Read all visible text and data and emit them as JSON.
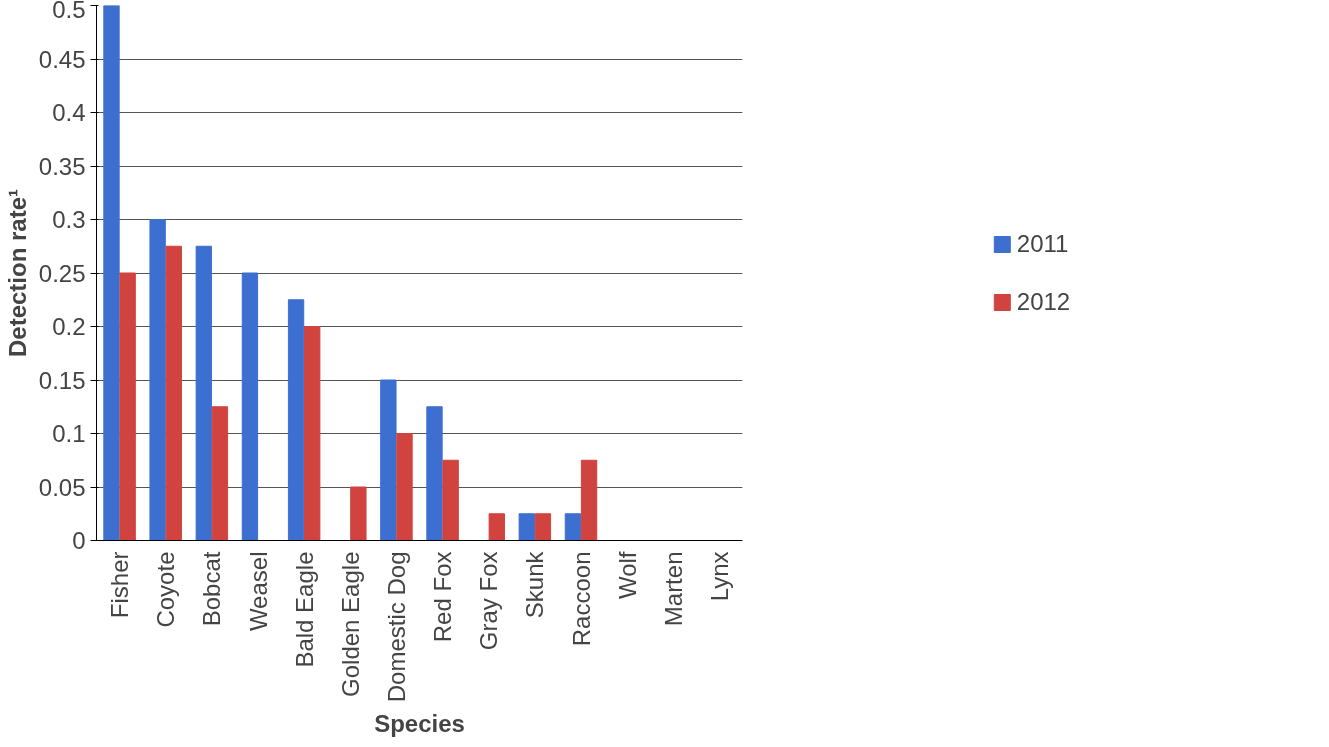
{
  "chart_data": {
    "type": "bar",
    "xlabel": "Species",
    "ylabel": "Detection rate¹",
    "categories": [
      "Fisher",
      "Coyote",
      "Bobcat",
      "Weasel",
      "Bald Eagle",
      "Golden Eagle",
      "Domestic Dog",
      "Red Fox",
      "Gray Fox",
      "Skunk",
      "Raccoon",
      "Wolf",
      "Marten",
      "Lynx"
    ],
    "series": [
      {
        "name": "2011",
        "color": "#3d6fd0",
        "values": [
          0.5,
          0.3,
          0.275,
          0.25,
          0.225,
          0,
          0.15,
          0.125,
          0,
          0.025,
          0.025,
          0,
          0,
          0
        ]
      },
      {
        "name": "2012",
        "color": "#d0433f",
        "values": [
          0.25,
          0.275,
          0.125,
          0,
          0.2,
          0.05,
          0.1,
          0.075,
          0.025,
          0.025,
          0.075,
          0,
          0,
          0
        ]
      }
    ],
    "ylim": [
      0,
      0.5
    ],
    "yticks": [
      0,
      0.05,
      0.1,
      0.15,
      0.2,
      0.25,
      0.3,
      0.35,
      0.4,
      0.45,
      0.5
    ],
    "grid": "y",
    "legend": "right"
  }
}
